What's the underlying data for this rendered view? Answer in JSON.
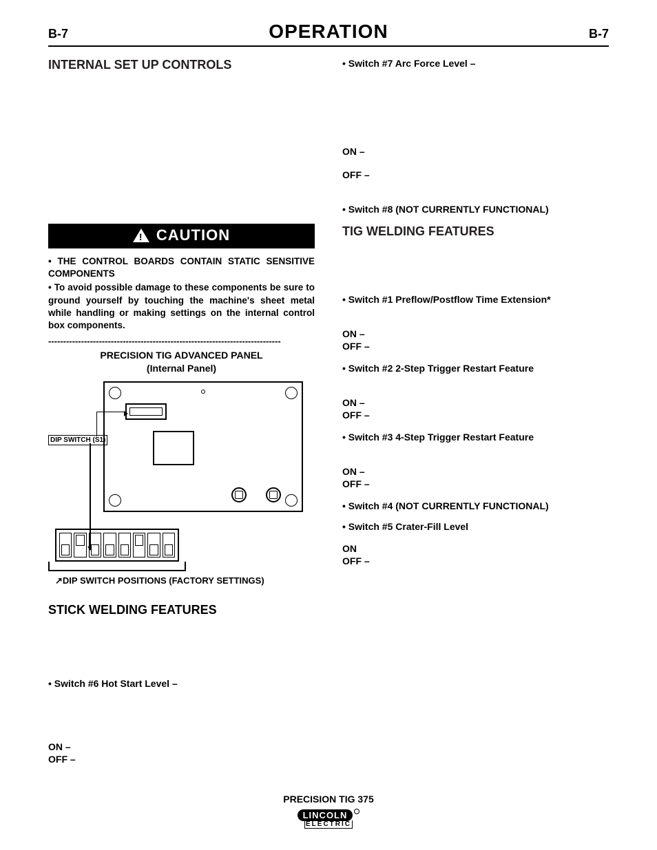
{
  "page": {
    "num_left": "B-7",
    "num_right": "B-7",
    "title": "OPERATION"
  },
  "left": {
    "section": "INTERNAL SET UP CONTROLS",
    "caution": "CAUTION",
    "bullet1": "• THE CONTROL BOARDS CONTAIN STATIC SENSITIVE COMPONENTS",
    "bullet2": "• To avoid possible damage to these components be sure to ground yourself by touching the machine's sheet metal while handling or making settings on the internal control box components.",
    "dashes": "------------------------------------------------------------------------------",
    "panel_title_1": "PRECISION TIG ADVANCED PANEL",
    "panel_title_2": "(Internal Panel)",
    "dip_label": "DIP SWITCH (S1)",
    "dip_caption": "DIP SWITCH POSITIONS (FACTORY SETTINGS)",
    "stick_head": "STICK WELDING FEATURES",
    "sw6": "• Switch #6 Hot Start Level –",
    "sw6_on": "ON   –",
    "sw6_off": "OFF –",
    "dip_pattern": [
      "down",
      "up",
      "down",
      "down",
      "down",
      "up",
      "down",
      "down"
    ]
  },
  "right": {
    "sw7": "• Switch #7 Arc Force Level –",
    "sw7_on": "ON   –",
    "sw7_off": "OFF –",
    "sw8": "• Switch #8 (NOT CURRENTLY FUNCTIONAL)",
    "tig_head": "TIG WELDING FEATURES",
    "sw1": "• Switch #1 Preflow/Postflow Time Extension*",
    "sw1_on": "ON –",
    "sw1_off": "OFF –",
    "sw2": "• Switch #2  2-Step Trigger Restart Feature",
    "sw2_on": "ON –",
    "sw2_off": "OFF –",
    "sw3": "• Switch #3  4-Step Trigger Restart Feature",
    "sw3_on": "ON –",
    "sw3_off": "OFF –",
    "sw4": "• Switch #4 (NOT CURRENTLY FUNCTIONAL)",
    "sw5": "• Switch #5 Crater-Fill Level",
    "sw5_on": "ON",
    "sw5_off": "OFF –"
  },
  "footer": {
    "model": "PRECISION TIG 375",
    "logo_top": "LINCOLN",
    "logo_bot": "ELECTRIC"
  },
  "colors": {
    "text": "#000000",
    "bg": "#ffffff",
    "caution_bg": "#000000",
    "caution_fg": "#ffffff"
  }
}
